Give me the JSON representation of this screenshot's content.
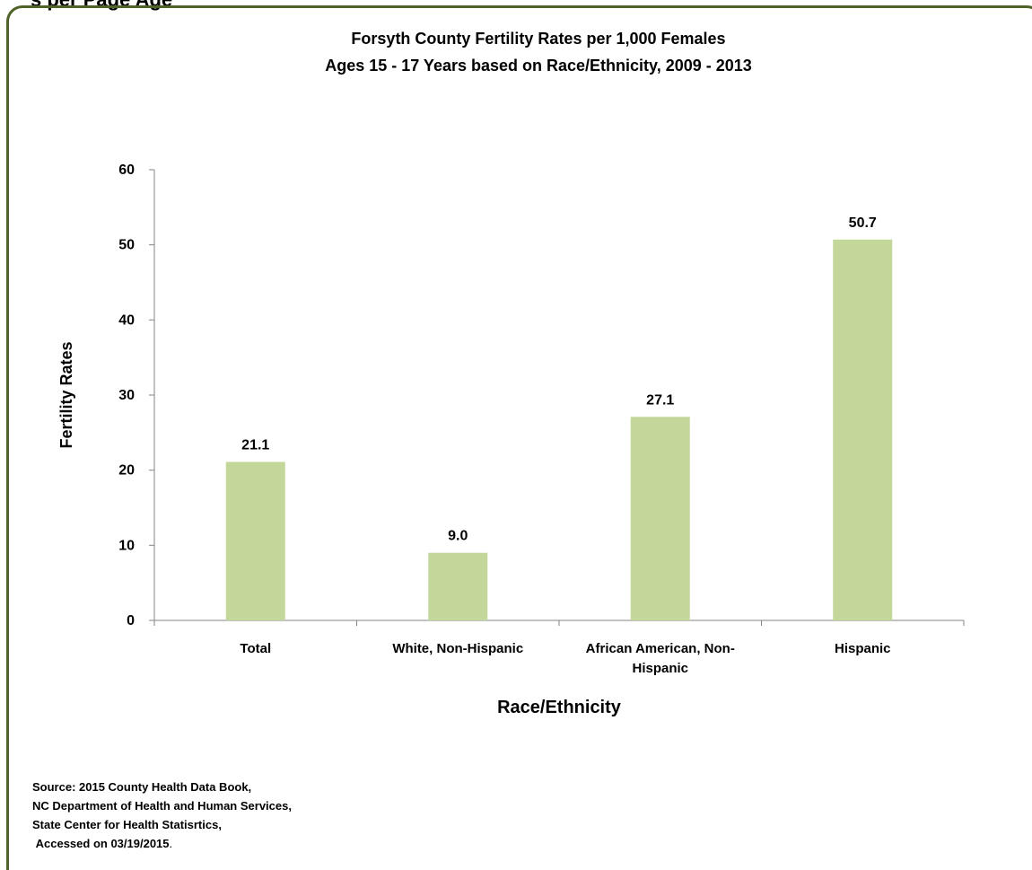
{
  "page": {
    "top_fragment": "s per Page Age",
    "source_lines": [
      "Source: 2015 County Health Data Book,",
      "NC Department of Health and Human Services,",
      "State Center for Health Statisrtics,",
      "Accessed on 03/19/2015"
    ],
    "source_trailing": "."
  },
  "chart_data": {
    "type": "bar",
    "title": "Forsyth County Fertility Rates per 1,000 Females",
    "subtitle": "Ages 15 - 17 Years based on Race/Ethnicity, 2009 - 2013",
    "xlabel": "Race/Ethnicity",
    "ylabel": "Fertility Rates",
    "categories": [
      [
        "Total"
      ],
      [
        "White, Non-Hispanic"
      ],
      [
        "African American, Non-",
        "Hispanic"
      ],
      [
        "Hispanic"
      ]
    ],
    "values": [
      21.1,
      9.0,
      27.1,
      50.7
    ],
    "value_labels": [
      "21.1",
      "9.0",
      "27.1",
      "50.7"
    ],
    "ylim": [
      0,
      60
    ],
    "yticks": [
      0,
      10,
      20,
      30,
      40,
      50,
      60
    ],
    "grid": false,
    "legend": "none",
    "bar_color": "#c4d79b",
    "frame_color": "#4f6228"
  }
}
